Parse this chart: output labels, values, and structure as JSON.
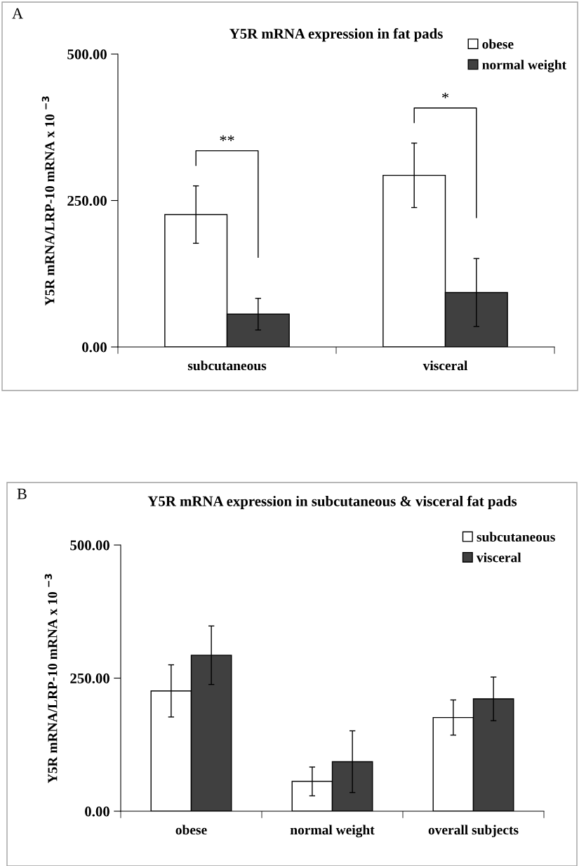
{
  "chart_data": [
    {
      "type": "bar",
      "title": "Y5R mRNA expression in fat pads",
      "ylabel": "Y5R mRNA/LRP-10 mRNA x 10 $^{−3}$",
      "categories": [
        "subcutaneous",
        "visceral"
      ],
      "series": [
        {
          "name": "obese",
          "color": "#ffffff",
          "values": [
            226,
            293
          ],
          "errors": [
            49,
            55
          ]
        },
        {
          "name": "normal weight",
          "color": "#404040",
          "values": [
            56,
            93
          ],
          "errors": [
            27,
            58
          ]
        }
      ],
      "ylim": [
        0,
        500
      ],
      "yticks": [
        {
          "value": 0,
          "label": "0.00"
        },
        {
          "value": 250,
          "label": "250.00"
        },
        {
          "value": 500,
          "label": "500.00"
        }
      ],
      "legend": "top right",
      "grid": false,
      "annotations": [
        "A",
        "**",
        "*"
      ]
    },
    {
      "type": "bar",
      "title": "Y5R mRNA expression in subcutaneous & visceral fat pads",
      "ylabel": "Y5R mRNA/LRP-10 mRNA x 10 $^{−3}$",
      "categories": [
        "obese",
        "normal weight",
        "overall subjects"
      ],
      "series": [
        {
          "name": "subcutaneous",
          "color": "#ffffff",
          "values": [
            226,
            56,
            176
          ],
          "errors": [
            49,
            27,
            33
          ]
        },
        {
          "name": "visceral",
          "color": "#404040",
          "values": [
            293,
            93,
            211
          ],
          "errors": [
            55,
            58,
            41
          ]
        }
      ],
      "ylim": [
        0,
        500
      ],
      "yticks": [
        {
          "value": 0,
          "label": "0.00"
        },
        {
          "value": 250,
          "label": "250.00"
        },
        {
          "value": 500,
          "label": "500.00"
        }
      ],
      "legend": "top right",
      "grid": false,
      "annotations": [
        "B"
      ]
    }
  ]
}
